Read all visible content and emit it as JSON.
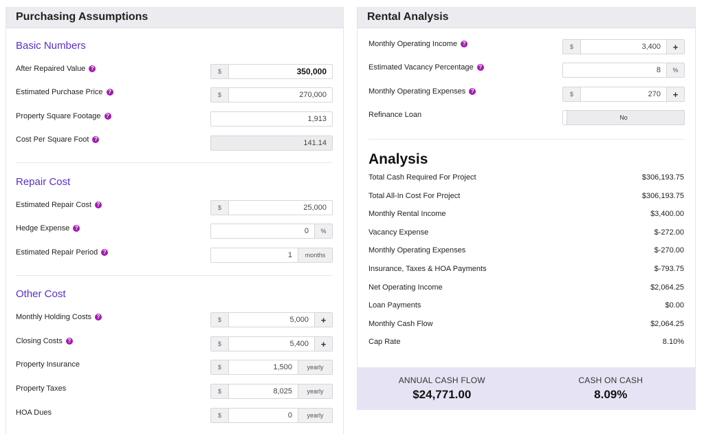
{
  "purchasing": {
    "title": "Purchasing Assumptions",
    "basic": {
      "heading": "Basic Numbers",
      "after_repaired_value": {
        "label": "After Repaired Value",
        "prefix": "$",
        "value": "350,000"
      },
      "purchase_price": {
        "label": "Estimated Purchase Price",
        "prefix": "$",
        "value": "270,000"
      },
      "square_footage": {
        "label": "Property Square Footage",
        "value": "1,913"
      },
      "cost_per_sqft": {
        "label": "Cost Per Square Foot",
        "value": "141.14"
      }
    },
    "repair": {
      "heading": "Repair Cost",
      "repair_cost": {
        "label": "Estimated Repair Cost",
        "prefix": "$",
        "value": "25,000"
      },
      "hedge_expense": {
        "label": "Hedge Expense",
        "value": "0",
        "suffix": "%"
      },
      "repair_period": {
        "label": "Estimated Repair Period",
        "value": "1",
        "suffix": "months"
      }
    },
    "other": {
      "heading": "Other Cost",
      "holding_costs": {
        "label": "Monthly Holding Costs",
        "prefix": "$",
        "value": "5,000",
        "suffix": "+"
      },
      "closing_costs": {
        "label": "Closing Costs",
        "prefix": "$",
        "value": "5,400",
        "suffix": "+"
      },
      "insurance": {
        "label": "Property Insurance",
        "prefix": "$",
        "value": "1,500",
        "suffix": "yearly"
      },
      "taxes": {
        "label": "Property Taxes",
        "prefix": "$",
        "value": "8,025",
        "suffix": "yearly"
      },
      "hoa": {
        "label": "HOA Dues",
        "prefix": "$",
        "value": "0",
        "suffix": "yearly"
      }
    }
  },
  "rental": {
    "title": "Rental Analysis",
    "operating_income": {
      "label": "Monthly Operating Income",
      "prefix": "$",
      "value": "3,400",
      "suffix": "+"
    },
    "vacancy": {
      "label": "Estimated Vacancy Percentage",
      "value": "8",
      "suffix": "%"
    },
    "operating_expenses": {
      "label": "Monthly Operating Expenses",
      "prefix": "$",
      "value": "270",
      "suffix": "+"
    },
    "refinance": {
      "label": "Refinance Loan",
      "value": "No"
    }
  },
  "analysis": {
    "title": "Analysis",
    "rows": [
      {
        "label": "Total Cash Required For Project",
        "value": "$306,193.75"
      },
      {
        "label": "Total All-In Cost For Project",
        "value": "$306,193.75"
      },
      {
        "label": "Monthly Rental Income",
        "value": "$3,400.00"
      },
      {
        "label": "Vacancy Expense",
        "value": "$-272.00"
      },
      {
        "label": "Monthly Operating Expenses",
        "value": "$-270.00"
      },
      {
        "label": "Insurance, Taxes & HOA Payments",
        "value": "$-793.75"
      },
      {
        "label": "Net Operating Income",
        "value": "$2,064.25"
      },
      {
        "label": "Loan Payments",
        "value": "$0.00"
      },
      {
        "label": "Monthly Cash Flow",
        "value": "$2,064.25"
      },
      {
        "label": "Cap Rate",
        "value": "8.10%"
      }
    ],
    "annual_cash_flow": {
      "label": "ANNUAL CASH FLOW",
      "value": "$24,771.00"
    },
    "cash_on_cash": {
      "label": "CASH ON CASH",
      "value": "8.09%"
    }
  },
  "icons": {
    "help": "help-circle-icon",
    "add": "plus-icon"
  },
  "colors": {
    "accent": "#5b2ec9",
    "help": "#a21caf",
    "summary_bg": "#e6e4f4"
  }
}
